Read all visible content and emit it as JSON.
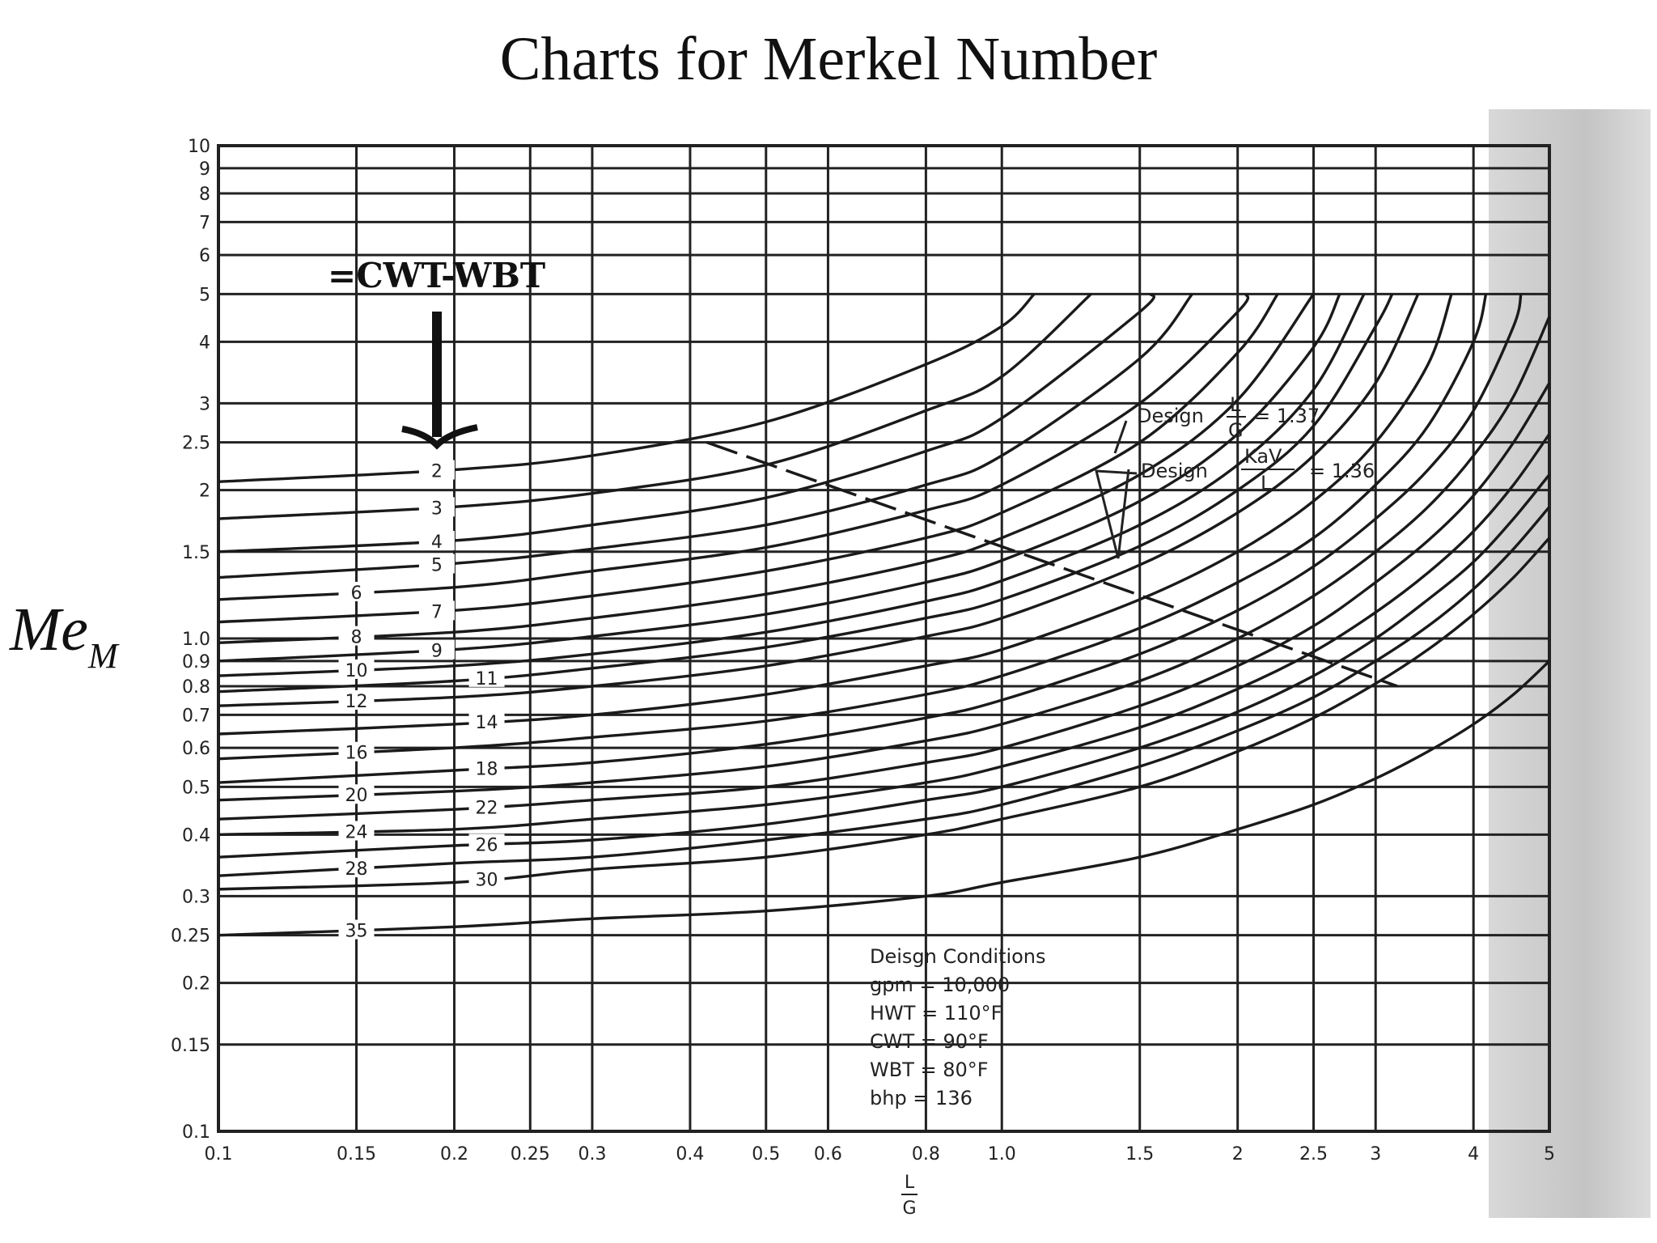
{
  "title": "Charts for Merkel Number",
  "ylabel_main": "Me",
  "ylabel_sub": "M",
  "annotation": "=CWT-WBT",
  "chart_data": {
    "type": "line",
    "xscale": "log",
    "yscale": "log",
    "xlim": [
      0.1,
      5
    ],
    "ylim": [
      0.1,
      10
    ],
    "xlabel_num": "L",
    "xlabel_den": "G",
    "xticks": [
      "0.1",
      "0.15",
      "0.2",
      "0.25",
      "0.3",
      "0.4",
      "0.5",
      "0.6",
      "0.8",
      "1.0",
      "1.5",
      "2",
      "2.5",
      "3",
      "4",
      "5"
    ],
    "xtick_values": [
      0.1,
      0.15,
      0.2,
      0.25,
      0.3,
      0.4,
      0.5,
      0.6,
      0.8,
      1.0,
      1.5,
      2,
      2.5,
      3,
      4,
      5
    ],
    "yticks": [
      "0.1",
      "0.15",
      "0.2",
      "0.25",
      "0.3",
      "0.4",
      "0.5",
      "0.6",
      "0.7",
      "0.8",
      "0.9",
      "1.0",
      "1.5",
      "2",
      "2.5",
      "3",
      "4",
      "5",
      "6",
      "7",
      "8",
      "9",
      "10"
    ],
    "ytick_values": [
      0.1,
      0.15,
      0.2,
      0.25,
      0.3,
      0.4,
      0.5,
      0.6,
      0.7,
      0.8,
      0.9,
      1.0,
      1.5,
      2,
      2.5,
      3,
      4,
      5,
      6,
      7,
      8,
      9,
      10
    ],
    "grid": true,
    "series": [
      {
        "name": "2",
        "label_x": 0.19,
        "points": [
          [
            0.1,
            2.08
          ],
          [
            0.2,
            2.2
          ],
          [
            0.3,
            2.35
          ],
          [
            0.5,
            2.75
          ],
          [
            0.8,
            3.6
          ],
          [
            1.0,
            4.3
          ],
          [
            1.1,
            5.0
          ]
        ]
      },
      {
        "name": "3",
        "label_x": 0.19,
        "points": [
          [
            0.1,
            1.75
          ],
          [
            0.2,
            1.85
          ],
          [
            0.3,
            1.97
          ],
          [
            0.5,
            2.25
          ],
          [
            0.8,
            2.9
          ],
          [
            1.0,
            3.4
          ],
          [
            1.3,
            5.0
          ]
        ]
      },
      {
        "name": "4",
        "label_x": 0.19,
        "points": [
          [
            0.1,
            1.5
          ],
          [
            0.2,
            1.58
          ],
          [
            0.3,
            1.7
          ],
          [
            0.5,
            1.93
          ],
          [
            0.8,
            2.4
          ],
          [
            1.0,
            2.8
          ],
          [
            1.5,
            4.6
          ],
          [
            1.55,
            5.0
          ]
        ]
      },
      {
        "name": "5",
        "label_x": 0.19,
        "points": [
          [
            0.1,
            1.33
          ],
          [
            0.2,
            1.42
          ],
          [
            0.3,
            1.52
          ],
          [
            0.5,
            1.7
          ],
          [
            0.8,
            2.05
          ],
          [
            1.0,
            2.35
          ],
          [
            1.5,
            3.7
          ],
          [
            1.75,
            5.0
          ]
        ]
      },
      {
        "name": "6",
        "label_x": 0.15,
        "points": [
          [
            0.1,
            1.2
          ],
          [
            0.2,
            1.27
          ],
          [
            0.3,
            1.37
          ],
          [
            0.5,
            1.53
          ],
          [
            0.8,
            1.82
          ],
          [
            1.0,
            2.05
          ],
          [
            1.5,
            3.0
          ],
          [
            2.0,
            4.6
          ],
          [
            2.05,
            5.0
          ]
        ]
      },
      {
        "name": "7",
        "label_x": 0.19,
        "points": [
          [
            0.1,
            1.08
          ],
          [
            0.2,
            1.14
          ],
          [
            0.3,
            1.22
          ],
          [
            0.5,
            1.37
          ],
          [
            0.8,
            1.6
          ],
          [
            1.0,
            1.8
          ],
          [
            1.5,
            2.5
          ],
          [
            2.0,
            3.8
          ],
          [
            2.25,
            5.0
          ]
        ]
      },
      {
        "name": "8",
        "label_x": 0.15,
        "points": [
          [
            0.1,
            0.98
          ],
          [
            0.2,
            1.03
          ],
          [
            0.3,
            1.1
          ],
          [
            0.5,
            1.23
          ],
          [
            0.8,
            1.43
          ],
          [
            1.0,
            1.6
          ],
          [
            1.5,
            2.15
          ],
          [
            2.0,
            3.05
          ],
          [
            2.5,
            5.0
          ]
        ]
      },
      {
        "name": "9",
        "label_x": 0.19,
        "points": [
          [
            0.1,
            0.9
          ],
          [
            0.2,
            0.95
          ],
          [
            0.3,
            1.01
          ],
          [
            0.5,
            1.12
          ],
          [
            0.8,
            1.3
          ],
          [
            1.0,
            1.44
          ],
          [
            1.5,
            1.9
          ],
          [
            2.0,
            2.6
          ],
          [
            2.5,
            3.9
          ],
          [
            2.7,
            5.0
          ]
        ]
      },
      {
        "name": "10",
        "label_x": 0.15,
        "points": [
          [
            0.1,
            0.84
          ],
          [
            0.2,
            0.88
          ],
          [
            0.3,
            0.93
          ],
          [
            0.5,
            1.03
          ],
          [
            0.8,
            1.19
          ],
          [
            1.0,
            1.31
          ],
          [
            1.5,
            1.7
          ],
          [
            2.0,
            2.25
          ],
          [
            2.5,
            3.2
          ],
          [
            2.9,
            5.0
          ]
        ]
      },
      {
        "name": "11",
        "label_x": 0.22,
        "points": [
          [
            0.1,
            0.78
          ],
          [
            0.2,
            0.82
          ],
          [
            0.3,
            0.87
          ],
          [
            0.5,
            0.96
          ],
          [
            0.8,
            1.1
          ],
          [
            1.0,
            1.2
          ],
          [
            1.5,
            1.54
          ],
          [
            2.0,
            2.0
          ],
          [
            2.5,
            2.7
          ],
          [
            3.0,
            4.3
          ],
          [
            3.15,
            5.0
          ]
        ]
      },
      {
        "name": "12",
        "label_x": 0.15,
        "points": [
          [
            0.1,
            0.73
          ],
          [
            0.2,
            0.76
          ],
          [
            0.3,
            0.8
          ],
          [
            0.5,
            0.88
          ],
          [
            0.8,
            1.01
          ],
          [
            1.0,
            1.1
          ],
          [
            1.5,
            1.41
          ],
          [
            2.0,
            1.8
          ],
          [
            2.5,
            2.35
          ],
          [
            3.0,
            3.3
          ],
          [
            3.4,
            5.0
          ]
        ]
      },
      {
        "name": "14",
        "label_x": 0.22,
        "points": [
          [
            0.1,
            0.64
          ],
          [
            0.2,
            0.67
          ],
          [
            0.3,
            0.7
          ],
          [
            0.5,
            0.77
          ],
          [
            0.8,
            0.88
          ],
          [
            1.0,
            0.95
          ],
          [
            1.5,
            1.2
          ],
          [
            2.0,
            1.5
          ],
          [
            2.5,
            1.9
          ],
          [
            3.0,
            2.5
          ],
          [
            3.5,
            3.6
          ],
          [
            3.75,
            5.0
          ]
        ]
      },
      {
        "name": "16",
        "label_x": 0.15,
        "points": [
          [
            0.1,
            0.57
          ],
          [
            0.2,
            0.6
          ],
          [
            0.3,
            0.63
          ],
          [
            0.5,
            0.68
          ],
          [
            0.8,
            0.77
          ],
          [
            1.0,
            0.84
          ],
          [
            1.5,
            1.05
          ],
          [
            2.0,
            1.3
          ],
          [
            2.5,
            1.6
          ],
          [
            3.0,
            2.05
          ],
          [
            3.5,
            2.7
          ],
          [
            4.0,
            4.0
          ],
          [
            4.15,
            5.0
          ]
        ]
      },
      {
        "name": "18",
        "label_x": 0.22,
        "points": [
          [
            0.1,
            0.51
          ],
          [
            0.2,
            0.54
          ],
          [
            0.3,
            0.56
          ],
          [
            0.5,
            0.61
          ],
          [
            0.8,
            0.69
          ],
          [
            1.0,
            0.75
          ],
          [
            1.5,
            0.93
          ],
          [
            2.0,
            1.14
          ],
          [
            2.5,
            1.4
          ],
          [
            3.0,
            1.75
          ],
          [
            3.5,
            2.2
          ],
          [
            4.0,
            2.9
          ],
          [
            4.5,
            4.3
          ],
          [
            4.6,
            5.0
          ]
        ]
      },
      {
        "name": "20",
        "label_x": 0.15,
        "points": [
          [
            0.1,
            0.47
          ],
          [
            0.2,
            0.49
          ],
          [
            0.3,
            0.51
          ],
          [
            0.5,
            0.55
          ],
          [
            0.8,
            0.62
          ],
          [
            1.0,
            0.67
          ],
          [
            1.5,
            0.82
          ],
          [
            2.0,
            1.0
          ],
          [
            2.5,
            1.22
          ],
          [
            3.0,
            1.5
          ],
          [
            3.5,
            1.85
          ],
          [
            4.0,
            2.35
          ],
          [
            4.5,
            3.1
          ],
          [
            5.0,
            4.5
          ]
        ]
      },
      {
        "name": "22",
        "label_x": 0.22,
        "points": [
          [
            0.1,
            0.43
          ],
          [
            0.2,
            0.45
          ],
          [
            0.3,
            0.47
          ],
          [
            0.5,
            0.5
          ],
          [
            0.8,
            0.56
          ],
          [
            1.0,
            0.6
          ],
          [
            1.5,
            0.73
          ],
          [
            2.0,
            0.88
          ],
          [
            2.5,
            1.06
          ],
          [
            3.0,
            1.3
          ],
          [
            3.5,
            1.58
          ],
          [
            4.0,
            1.95
          ],
          [
            4.5,
            2.5
          ],
          [
            5.0,
            3.3
          ]
        ]
      },
      {
        "name": "24",
        "label_x": 0.15,
        "points": [
          [
            0.1,
            0.4
          ],
          [
            0.2,
            0.41
          ],
          [
            0.3,
            0.43
          ],
          [
            0.5,
            0.46
          ],
          [
            0.8,
            0.51
          ],
          [
            1.0,
            0.55
          ],
          [
            1.5,
            0.66
          ],
          [
            2.0,
            0.79
          ],
          [
            2.5,
            0.94
          ],
          [
            3.0,
            1.13
          ],
          [
            3.5,
            1.36
          ],
          [
            4.0,
            1.65
          ],
          [
            4.5,
            2.05
          ],
          [
            5.0,
            2.6
          ]
        ]
      },
      {
        "name": "26",
        "label_x": 0.22,
        "points": [
          [
            0.1,
            0.36
          ],
          [
            0.2,
            0.38
          ],
          [
            0.3,
            0.39
          ],
          [
            0.5,
            0.42
          ],
          [
            0.8,
            0.47
          ],
          [
            1.0,
            0.5
          ],
          [
            1.5,
            0.6
          ],
          [
            2.0,
            0.71
          ],
          [
            2.5,
            0.84
          ],
          [
            3.0,
            1.0
          ],
          [
            3.5,
            1.2
          ],
          [
            4.0,
            1.43
          ],
          [
            4.5,
            1.75
          ],
          [
            5.0,
            2.15
          ]
        ]
      },
      {
        "name": "28",
        "label_x": 0.15,
        "points": [
          [
            0.1,
            0.33
          ],
          [
            0.2,
            0.35
          ],
          [
            0.3,
            0.36
          ],
          [
            0.5,
            0.39
          ],
          [
            0.8,
            0.43
          ],
          [
            1.0,
            0.46
          ],
          [
            1.5,
            0.55
          ],
          [
            2.0,
            0.65
          ],
          [
            2.5,
            0.76
          ],
          [
            3.0,
            0.9
          ],
          [
            3.5,
            1.06
          ],
          [
            4.0,
            1.26
          ],
          [
            4.5,
            1.52
          ],
          [
            5.0,
            1.85
          ]
        ]
      },
      {
        "name": "30",
        "label_x": 0.22,
        "points": [
          [
            0.1,
            0.31
          ],
          [
            0.2,
            0.32
          ],
          [
            0.3,
            0.34
          ],
          [
            0.5,
            0.36
          ],
          [
            0.8,
            0.4
          ],
          [
            1.0,
            0.43
          ],
          [
            1.5,
            0.5
          ],
          [
            2.0,
            0.59
          ],
          [
            2.5,
            0.69
          ],
          [
            3.0,
            0.81
          ],
          [
            3.5,
            0.95
          ],
          [
            4.0,
            1.12
          ],
          [
            4.5,
            1.33
          ],
          [
            5.0,
            1.6
          ]
        ]
      },
      {
        "name": "35",
        "label_x": 0.15,
        "points": [
          [
            0.1,
            0.25
          ],
          [
            0.2,
            0.26
          ],
          [
            0.3,
            0.27
          ],
          [
            0.5,
            0.28
          ],
          [
            0.8,
            0.3
          ],
          [
            1.0,
            0.32
          ],
          [
            1.5,
            0.36
          ],
          [
            2.0,
            0.41
          ],
          [
            2.5,
            0.46
          ],
          [
            3.0,
            0.52
          ],
          [
            3.5,
            0.59
          ],
          [
            4.0,
            0.67
          ],
          [
            4.5,
            0.77
          ],
          [
            5.0,
            0.9
          ]
        ]
      }
    ],
    "design_line": {
      "points": [
        [
          0.42,
          2.5
        ],
        [
          3.2,
          0.8
        ]
      ]
    },
    "design_labels": {
      "lg_prefix": "Design",
      "lg_num": "L",
      "lg_den": "G",
      "lg_value": "= 1.37",
      "kav_prefix": "Design",
      "kav_num": "KaV",
      "kav_den": "L",
      "kav_value": "= 1.36"
    },
    "conditions": {
      "title": "Deisgn Conditions",
      "lines": [
        "gpm   = 10,000",
        "HWT  = 110°F",
        "CWT  = 90°F",
        "WBT  = 80°F",
        "bhp   = 136"
      ]
    }
  }
}
